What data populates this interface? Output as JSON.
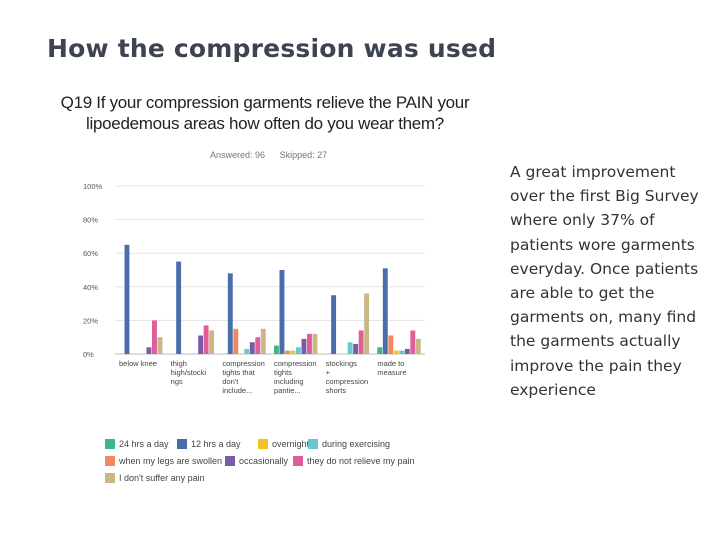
{
  "slide": {
    "title": "How the compression was used",
    "question": "Q19 If your compression garments relieve the PAIN your lipoedemous areas how often do you wear them?",
    "answered": "Answered: 96",
    "skipped": "Skipped: 27",
    "side_text": "A great improvement over the first Big Survey where only 37% of patients wore garments everyday. Once patients are able to get the garments on, many find the garments actually improve the pain they experience"
  },
  "chart_data": {
    "type": "bar",
    "categories": [
      [
        "below knee"
      ],
      [
        "thigh",
        "high/stocki",
        "ngs"
      ],
      [
        "compression",
        "tights that",
        "don't",
        "include..."
      ],
      [
        "compression",
        "tights",
        "including",
        "pantie..."
      ],
      [
        "stockings",
        "+",
        "compression",
        "shorts"
      ],
      [
        "made to",
        "measure"
      ]
    ],
    "series": [
      {
        "name": "24 hrs a day",
        "color": "#3fb58b",
        "values": [
          0,
          0,
          0,
          5,
          0,
          4
        ]
      },
      {
        "name": "12 hrs a day",
        "color": "#4a6ea9",
        "values": [
          65,
          55,
          48,
          50,
          35,
          51
        ]
      },
      {
        "name": "when my legs are swollen",
        "color": "#f4875d",
        "values": [
          0,
          0,
          15,
          2,
          0,
          11
        ]
      },
      {
        "name": "overnight",
        "color": "#f5c31d",
        "values": [
          0,
          0,
          0,
          2,
          0,
          2
        ]
      },
      {
        "name": "during exercising",
        "color": "#67c8cf",
        "values": [
          0,
          0,
          3,
          4,
          7,
          2
        ]
      },
      {
        "name": "occasionally",
        "color": "#7b5aa6",
        "values": [
          4,
          11,
          7,
          9,
          6,
          3
        ]
      },
      {
        "name": "they do not relieve my pain",
        "color": "#df5d9a",
        "values": [
          20,
          17,
          10,
          12,
          14,
          14
        ]
      },
      {
        "name": "I don't suffer any pain",
        "color": "#c9b883",
        "values": [
          10,
          14,
          15,
          12,
          36,
          9
        ]
      }
    ],
    "yticks": [
      "0%",
      "20%",
      "40%",
      "60%",
      "80%",
      "100%"
    ],
    "ylim": [
      0,
      100
    ],
    "grid": true,
    "legend_position": "bottom",
    "legend_order": [
      "24 hrs a day",
      "12 hrs a day",
      "overnight",
      "during exercising",
      "when my legs are swollen",
      "occasionally",
      "they do not relieve my pain",
      "I don't suffer any pain"
    ]
  }
}
